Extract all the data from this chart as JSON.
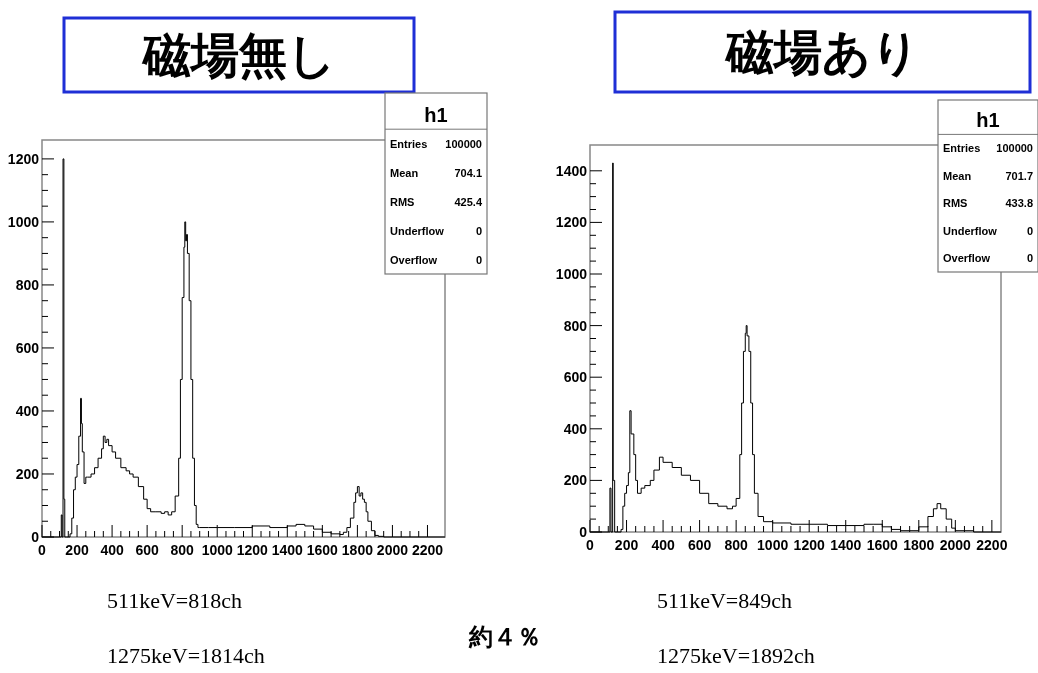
{
  "chart_data": [
    {
      "type": "step",
      "title": "磁場無し",
      "annotations": [
        "h1",
        "Entries 100000",
        "Mean 704.1",
        "RMS 425.4",
        "Underflow 0",
        "Overflow 0",
        "511keV=818ch",
        "1275keV=1814ch",
        "約４％"
      ],
      "series": [
        {
          "color": "#000000",
          "x": [
            0,
            100,
            110,
            115,
            120,
            125,
            130,
            140,
            150,
            160,
            170,
            180,
            190,
            200,
            210,
            220,
            225,
            230,
            240,
            250,
            260,
            280,
            300,
            320,
            340,
            350,
            360,
            370,
            380,
            400,
            420,
            450,
            480,
            500,
            520,
            550,
            580,
            600,
            620,
            650,
            680,
            700,
            720,
            740,
            760,
            780,
            790,
            800,
            810,
            815,
            820,
            825,
            830,
            840,
            850,
            860,
            870,
            880,
            890,
            900,
            950,
            1000,
            1100,
            1200,
            1300,
            1400,
            1450,
            1500,
            1550,
            1600,
            1650,
            1700,
            1720,
            1740,
            1760,
            1780,
            1790,
            1800,
            1810,
            1820,
            1830,
            1840,
            1850,
            1860,
            1880,
            1900,
            1920,
            1950,
            2000,
            2100,
            2200,
            2300
          ],
          "values": [
            0,
            0,
            70,
            0,
            1200,
            120,
            0,
            0,
            0,
            10,
            60,
            150,
            190,
            230,
            320,
            440,
            360,
            270,
            170,
            190,
            190,
            200,
            220,
            250,
            280,
            320,
            300,
            310,
            290,
            270,
            250,
            220,
            210,
            200,
            190,
            160,
            120,
            90,
            80,
            80,
            75,
            80,
            70,
            80,
            130,
            250,
            500,
            760,
            920,
            1000,
            940,
            960,
            900,
            750,
            500,
            250,
            100,
            40,
            30,
            30,
            30,
            30,
            30,
            35,
            30,
            35,
            40,
            35,
            25,
            15,
            10,
            8,
            15,
            30,
            60,
            110,
            140,
            160,
            130,
            140,
            120,
            110,
            80,
            50,
            20,
            5,
            2,
            0,
            0,
            0,
            0,
            0
          ]
        }
      ],
      "xlim": [
        0,
        2300
      ],
      "ylim": [
        0,
        1260
      ],
      "xticks": [
        0,
        200,
        400,
        600,
        800,
        1000,
        1200,
        1400,
        1600,
        1800,
        2000,
        2200
      ],
      "yticks": [
        0,
        200,
        400,
        600,
        800,
        1000,
        1200
      ]
    },
    {
      "type": "step",
      "title": "磁場あり",
      "annotations": [
        "h1",
        "Entries 100000",
        "Mean 701.7",
        "RMS 433.8",
        "Underflow 0",
        "Overflow 0",
        "511keV=849ch",
        "1275keV=1892ch"
      ],
      "series": [
        {
          "color": "#000000",
          "x": [
            0,
            100,
            109,
            115,
            124,
            127,
            135,
            150,
            170,
            180,
            190,
            200,
            210,
            218,
            225,
            240,
            250,
            260,
            280,
            300,
            330,
            350,
            380,
            400,
            450,
            500,
            550,
            600,
            650,
            700,
            750,
            780,
            800,
            820,
            830,
            840,
            850,
            855,
            860,
            870,
            880,
            890,
            900,
            920,
            950,
            1000,
            1100,
            1200,
            1300,
            1400,
            1500,
            1550,
            1600,
            1650,
            1700,
            1750,
            1800,
            1850,
            1880,
            1900,
            1920,
            1950,
            1980,
            2000,
            2100,
            2250
          ],
          "values": [
            0,
            0,
            170,
            0,
            1430,
            200,
            0,
            0,
            10,
            100,
            150,
            180,
            230,
            470,
            380,
            300,
            200,
            150,
            170,
            180,
            200,
            240,
            290,
            270,
            250,
            220,
            200,
            150,
            110,
            100,
            90,
            100,
            130,
            300,
            500,
            700,
            770,
            800,
            760,
            700,
            500,
            300,
            150,
            60,
            40,
            35,
            30,
            30,
            25,
            25,
            30,
            30,
            20,
            10,
            5,
            5,
            20,
            60,
            90,
            110,
            90,
            50,
            15,
            5,
            0,
            0
          ]
        }
      ],
      "xlim": [
        0,
        2250
      ],
      "ylim": [
        0,
        1500
      ],
      "xticks": [
        0,
        200,
        400,
        600,
        800,
        1000,
        1200,
        1400,
        1600,
        1800,
        2000,
        2200
      ],
      "yticks": [
        0,
        200,
        400,
        600,
        800,
        1000,
        1200,
        1400
      ]
    }
  ]
}
